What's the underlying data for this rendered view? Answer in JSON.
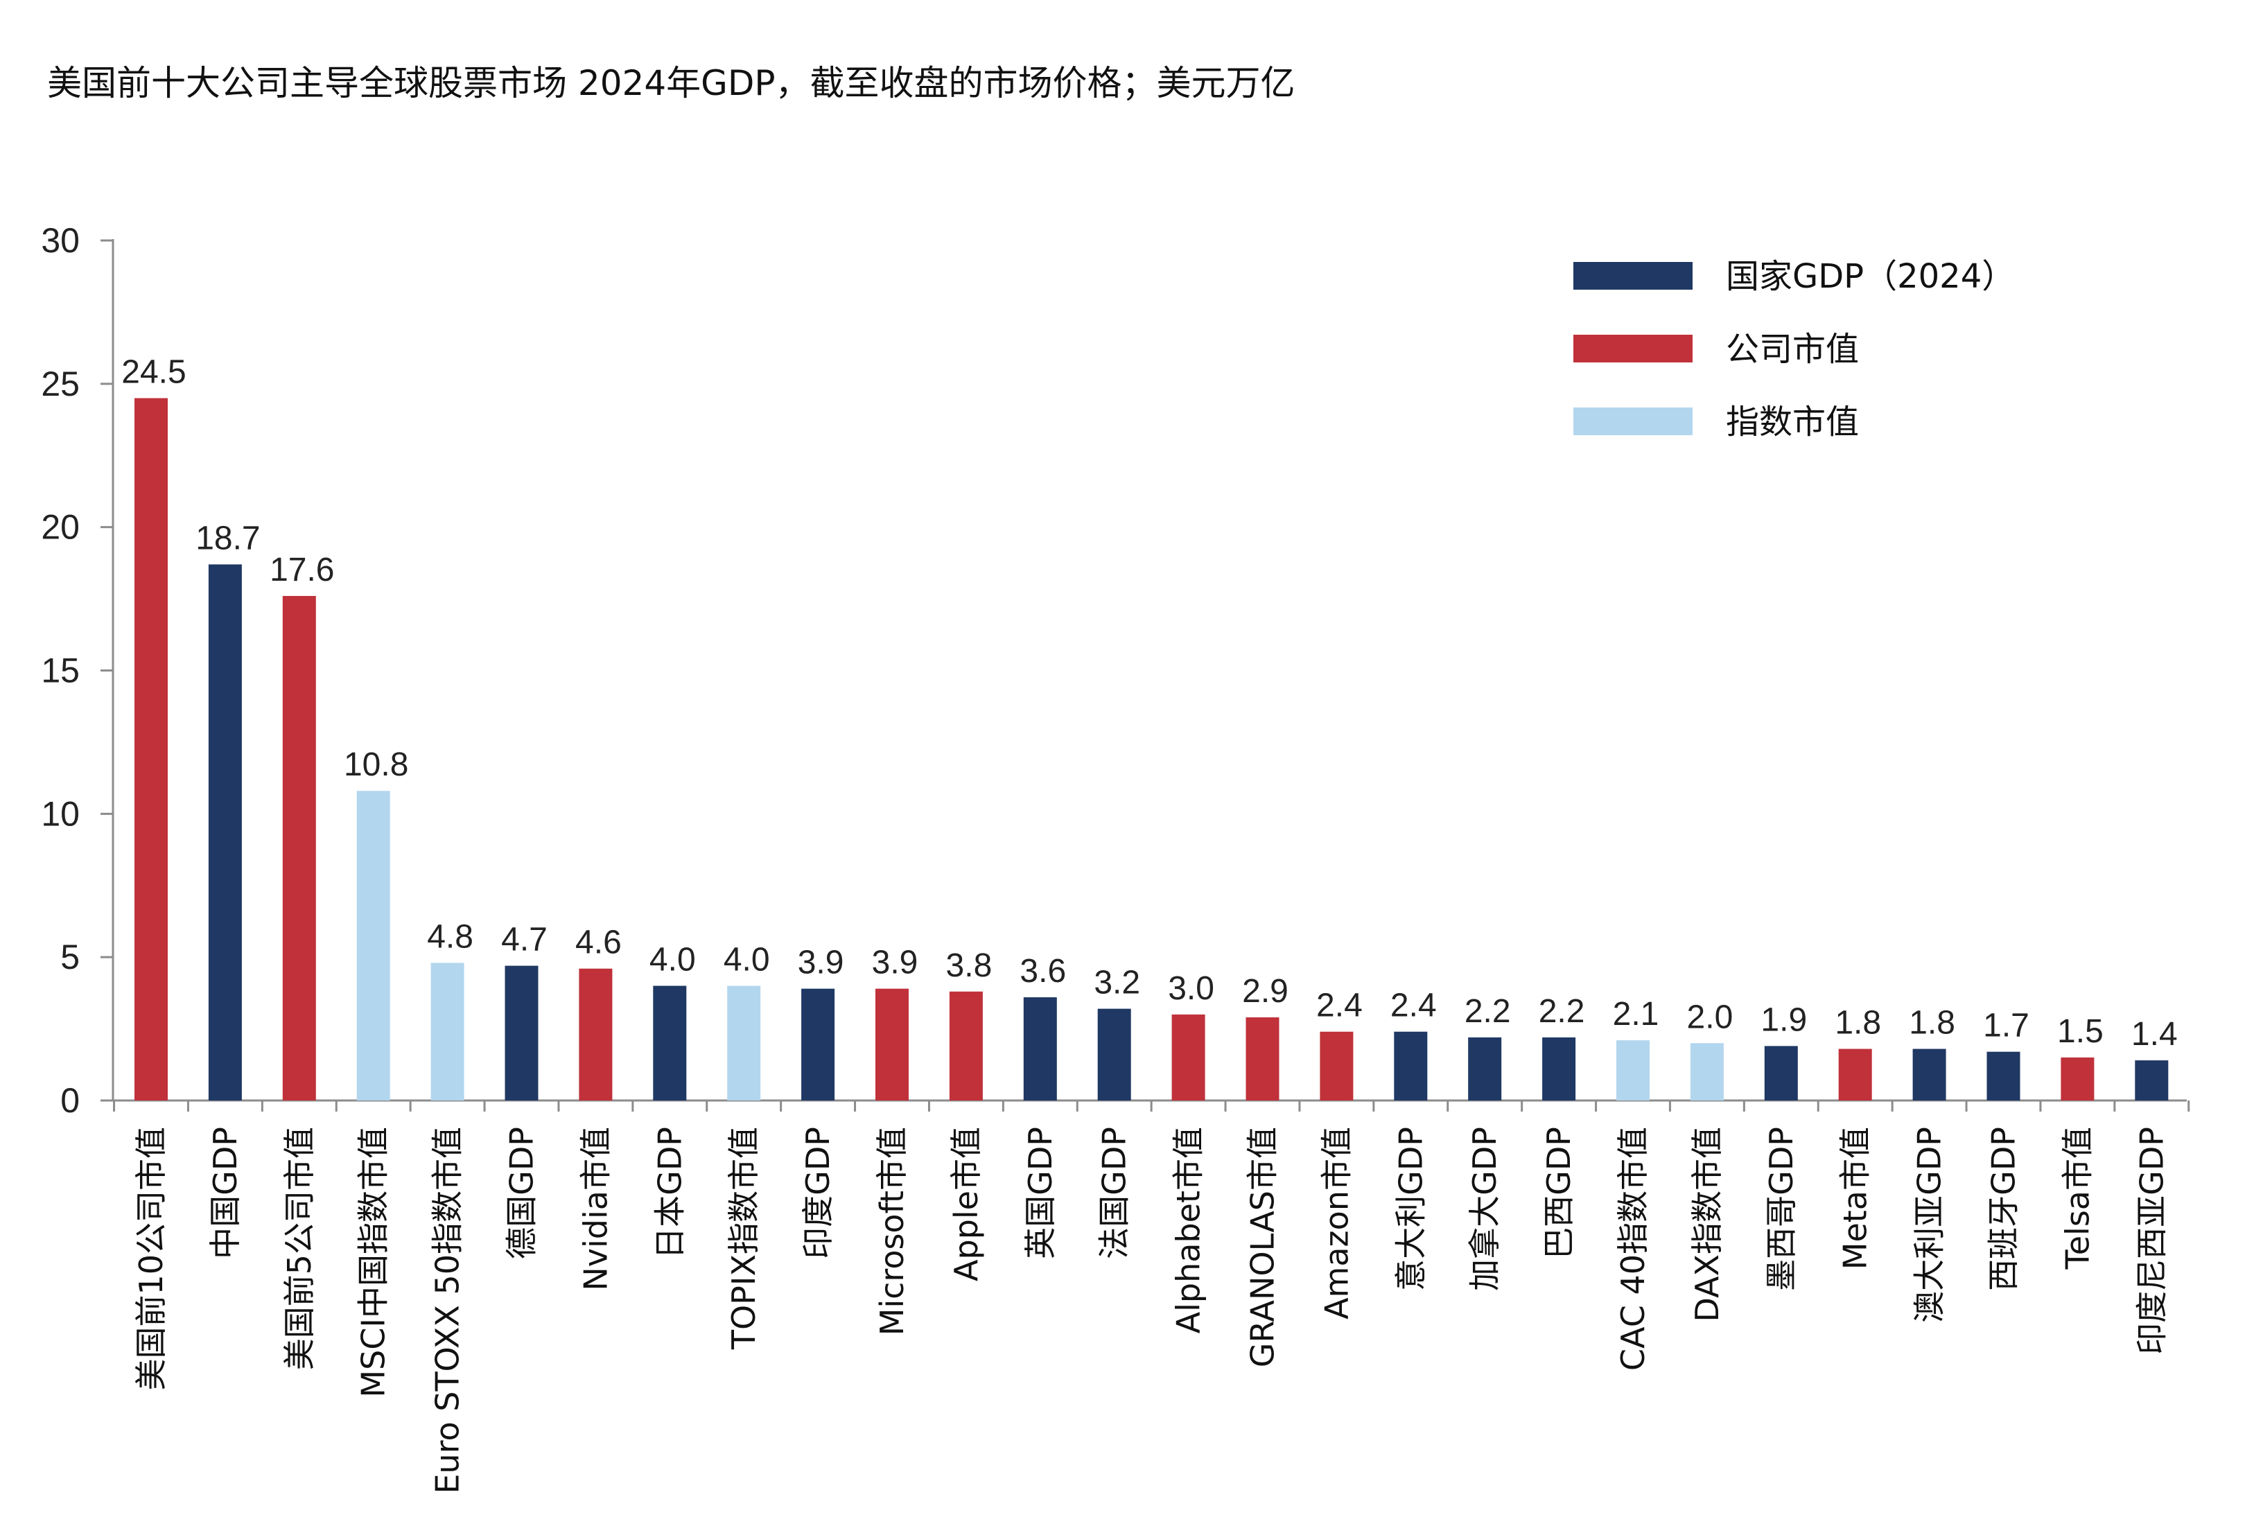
{
  "chart_data": {
    "type": "bar",
    "title": "美国前十大公司主导全球股票市场 2024年GDP，截至收盘的市场价格；美元万亿",
    "xlabel": "",
    "ylabel": "",
    "ylim": [
      0,
      30
    ],
    "yticks": [
      0,
      5,
      10,
      15,
      20,
      25,
      30
    ],
    "grid": false,
    "legend_position": "top-right",
    "legend": [
      {
        "key": "gdp",
        "label": "国家GDP（2024）",
        "color": "#1f3864"
      },
      {
        "key": "company",
        "label": "公司市值",
        "color": "#c0313a"
      },
      {
        "key": "index",
        "label": "指数市值",
        "color": "#b3d6ef"
      }
    ],
    "categories": [
      "美国前10公司市值",
      "中国GDP",
      "美国前5公司市值",
      "MSCI中国指数市值",
      "Euro STOXX 50指数市值",
      "德国GDP",
      "Nvidia市值",
      "日本GDP",
      "TOPIX指数市值",
      "印度GDP",
      "Microsoft市值",
      "Apple市值",
      "英国GDP",
      "法国GDP",
      "Alphabet市值",
      "GRANOLAS市值",
      "Amazon市值",
      "意大利GDP",
      "加拿大GDP",
      "巴西GDP",
      "CAC 40指数市值",
      "DAX指数市值",
      "墨西哥GDP",
      "Meta市值",
      "澳大利亚GDP",
      "西班牙GDP",
      "Telsa市值",
      "印度尼西亚GDP"
    ],
    "values": [
      24.5,
      18.7,
      17.6,
      10.8,
      4.8,
      4.7,
      4.6,
      4.0,
      4.0,
      3.9,
      3.9,
      3.8,
      3.6,
      3.2,
      3.0,
      2.9,
      2.4,
      2.4,
      2.2,
      2.2,
      2.1,
      2.0,
      1.9,
      1.8,
      1.8,
      1.7,
      1.5,
      1.4
    ],
    "value_labels": [
      "24.5",
      "18.7",
      "17.6",
      "10.8",
      "4.8",
      "4.7",
      "4.6",
      "4.0",
      "4.0",
      "3.9",
      "3.9",
      "3.8",
      "3.6",
      "3.2",
      "3.0",
      "2.9",
      "2.4",
      "2.4",
      "2.2",
      "2.2",
      "2.1",
      "2.0",
      "1.9",
      "1.8",
      "1.8",
      "1.7",
      "1.5",
      "1.4"
    ],
    "bar_types": [
      "company",
      "gdp",
      "company",
      "index",
      "index",
      "gdp",
      "company",
      "gdp",
      "index",
      "gdp",
      "company",
      "company",
      "gdp",
      "gdp",
      "company",
      "company",
      "company",
      "gdp",
      "gdp",
      "gdp",
      "index",
      "index",
      "gdp",
      "company",
      "gdp",
      "gdp",
      "company",
      "gdp"
    ]
  }
}
